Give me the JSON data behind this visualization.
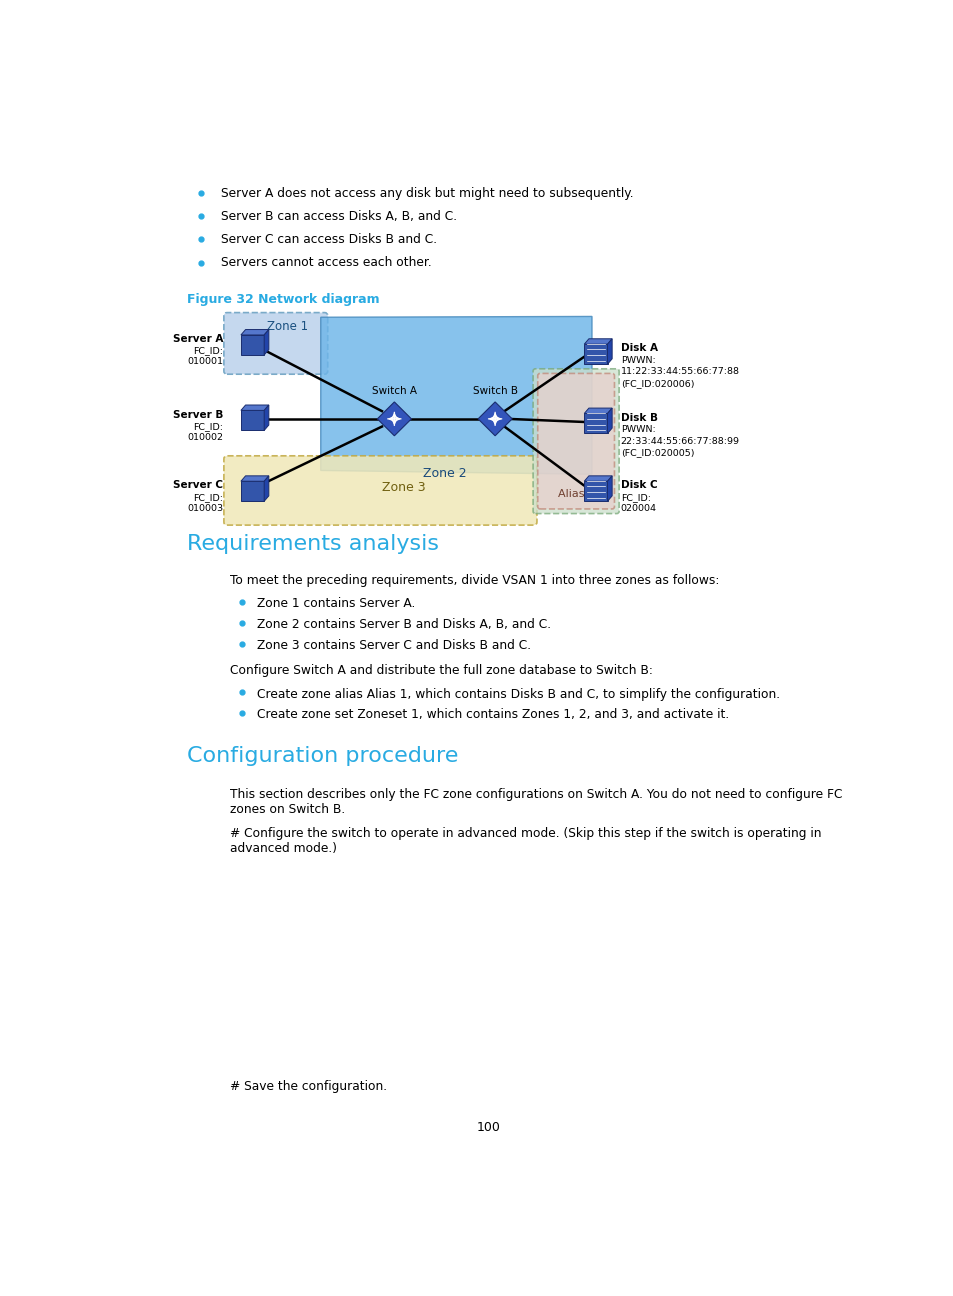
{
  "bg_color": "#ffffff",
  "page_width": 9.54,
  "page_height": 12.96,
  "bullet_color": "#29abe2",
  "heading_color": "#29abe2",
  "text_color": "#000000",
  "bullet_items_top": [
    "Server A does not access any disk but might need to subsequently.",
    "Server B can access Disks A, B, and C.",
    "Server C can access Disks B and C.",
    "Servers cannot access each other."
  ],
  "figure_caption": "Figure 32 Network diagram",
  "section1_title": "Requirements analysis",
  "section1_para": "To meet the preceding requirements, divide VSAN 1 into three zones as follows:",
  "section1_bullets": [
    "Zone 1 contains Server A.",
    "Zone 2 contains Server B and Disks A, B, and C.",
    "Zone 3 contains Server C and Disks B and C."
  ],
  "section1_para2": "Configure Switch A and distribute the full zone database to Switch B:",
  "section1_bullets2": [
    "Create zone alias Alias 1, which contains Disks B and C, to simplify the configuration.",
    "Create zone set Zoneset 1, which contains Zones 1, 2, and 3, and activate it."
  ],
  "section2_title": "Configuration procedure",
  "section2_para1": "This section describes only the FC zone configurations on Switch A. You do not need to configure FC\nzones on Switch B.",
  "section2_para2": "# Configure the switch to operate in advanced mode. (Skip this step if the switch is operating in\nadvanced mode.)",
  "section2_para3": "# Save the configuration.",
  "page_number": "100",
  "zone1_color": "#c5d8ee",
  "zone1_border": "#7aaac8",
  "zone2_color": "#6db5e8",
  "zone2_border": "#4488bb",
  "zone3_color": "#f0e8b8",
  "zone3_border": "#c0a840",
  "alias1_inner_color": "#e8d0cc",
  "alias1_inner_border": "#c08878",
  "alias1_outer_color": "#cce0cc",
  "alias1_outer_border": "#78a878"
}
